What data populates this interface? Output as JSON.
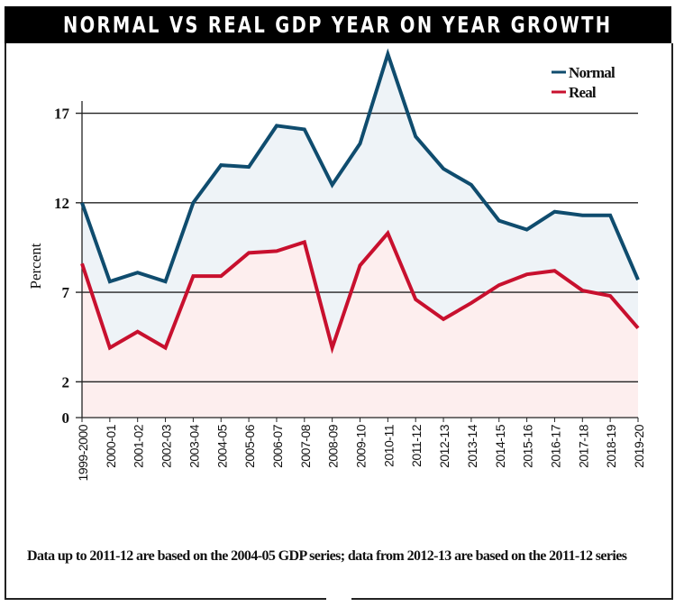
{
  "title": "NORMAL VS REAL GDP YEAR ON YEAR GROWTH",
  "note": "Data up to 2011-12 are based on the 2004-05 GDP series; data from 2012-13 are based on the 2011-12 series",
  "chart_data": {
    "type": "line",
    "title": "NORMAL VS REAL GDP YEAR ON YEAR GROWTH",
    "ylabel": "Percent",
    "xlabel": "",
    "ylim": [
      0,
      20.5
    ],
    "yticks": [
      0,
      2,
      7,
      12,
      17
    ],
    "grid": true,
    "legend": "top-right",
    "categories": [
      "1999-2000",
      "2000-01",
      "2001-02",
      "2002-03",
      "2003-04",
      "2004-05",
      "2005-06",
      "2006-07",
      "2007-08",
      "2008-09",
      "2009-10",
      "2010-11",
      "2011-12",
      "2012-13",
      "2013-14",
      "2014-15",
      "2015-16",
      "2016-17",
      "2017-18",
      "2018-19",
      "2019-20"
    ],
    "series": [
      {
        "name": "Normal",
        "color": "#0f4c6e",
        "values": [
          12.0,
          7.6,
          8.1,
          7.6,
          12.0,
          14.1,
          14.0,
          16.3,
          16.1,
          13.0,
          15.3,
          20.3,
          15.7,
          13.9,
          13.0,
          11.0,
          10.5,
          11.5,
          11.3,
          11.3,
          7.7
        ]
      },
      {
        "name": "Real",
        "color": "#c8102e",
        "values": [
          8.6,
          3.9,
          4.8,
          3.9,
          7.9,
          7.9,
          9.2,
          9.3,
          9.8,
          3.9,
          8.5,
          10.3,
          6.6,
          5.5,
          6.4,
          7.4,
          8.0,
          8.2,
          7.1,
          6.8,
          5.0
        ]
      }
    ],
    "fill_colors": {
      "between": "#eef3f7",
      "below_real": "#fdeeee"
    }
  }
}
